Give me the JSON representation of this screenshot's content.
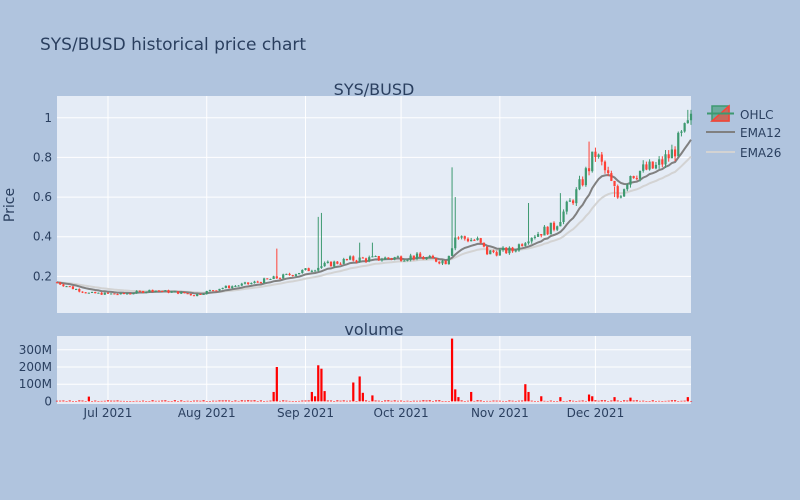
{
  "page": {
    "title": "SYS/BUSD historical price chart"
  },
  "colors": {
    "background": "#b0c4de",
    "plot_bg": "#e5ecf6",
    "grid": "#ffffff",
    "text": "#2a3f5f",
    "increasing": "#3d9970",
    "decreasing": "#ff4136",
    "ema12": "#808080",
    "ema26": "#d3d3d3",
    "volume": "#ff0000"
  },
  "legend": {
    "placement": "top-right",
    "items": [
      {
        "label": "OHLC",
        "icon": "candlestick-legend-icon"
      },
      {
        "label": "EMA12",
        "icon": "line-legend-icon"
      },
      {
        "label": "EMA26",
        "icon": "line-legend-icon"
      }
    ]
  },
  "chart_data": [
    {
      "type": "candlestick",
      "title": "SYS/BUSD",
      "ylabel": "Price",
      "x_range": [
        "2021-06-15",
        "2021-12-31"
      ],
      "ylim": [
        0.015,
        1.11
      ],
      "yticks": [
        0.2,
        0.4,
        0.6,
        0.8,
        1
      ],
      "ytick_labels": [
        "0.2",
        "0.4",
        "0.6",
        "0.8",
        "1"
      ],
      "grid": true,
      "keypoints": [
        [
          "2021-06-15",
          0.17
        ],
        [
          "2021-06-20",
          0.14
        ],
        [
          "2021-06-25",
          0.115
        ],
        [
          "2021-07-05",
          0.11
        ],
        [
          "2021-07-15",
          0.13
        ],
        [
          "2021-07-25",
          0.115
        ],
        [
          "2021-07-28",
          0.105
        ],
        [
          "2021-08-05",
          0.14
        ],
        [
          "2021-08-15",
          0.165
        ],
        [
          "2021-08-25",
          0.2
        ],
        [
          "2021-09-01",
          0.23
        ],
        [
          "2021-09-08",
          0.26
        ],
        [
          "2021-09-15",
          0.285
        ],
        [
          "2021-09-25",
          0.29
        ],
        [
          "2021-10-05",
          0.3
        ],
        [
          "2021-10-15",
          0.275
        ],
        [
          "2021-10-18",
          0.4
        ],
        [
          "2021-10-25",
          0.38
        ],
        [
          "2021-10-28",
          0.32
        ],
        [
          "2021-11-05",
          0.33
        ],
        [
          "2021-11-10",
          0.4
        ],
        [
          "2021-11-18",
          0.45
        ],
        [
          "2021-11-25",
          0.62
        ],
        [
          "2021-12-01",
          0.82
        ],
        [
          "2021-12-05",
          0.7
        ],
        [
          "2021-12-08",
          0.6
        ],
        [
          "2021-12-12",
          0.72
        ],
        [
          "2021-12-20",
          0.75
        ],
        [
          "2021-12-25",
          0.82
        ],
        [
          "2021-12-31",
          0.98
        ]
      ],
      "spikes": [
        {
          "date": "2021-08-23",
          "high": 0.34
        },
        {
          "date": "2021-09-05",
          "high": 0.5
        },
        {
          "date": "2021-09-06",
          "high": 0.52
        },
        {
          "date": "2021-09-18",
          "high": 0.37
        },
        {
          "date": "2021-09-22",
          "high": 0.37
        },
        {
          "date": "2021-10-17",
          "high": 0.75
        },
        {
          "date": "2021-10-18",
          "high": 0.6
        },
        {
          "date": "2021-11-10",
          "high": 0.57
        },
        {
          "date": "2021-11-20",
          "high": 0.62
        },
        {
          "date": "2021-11-29",
          "high": 0.88
        },
        {
          "date": "2021-12-07",
          "high": 0.6
        },
        {
          "date": "2021-12-30",
          "high": 1.04
        },
        {
          "date": "2021-12-31",
          "high": 1.04
        }
      ],
      "series": [
        {
          "name": "OHLC",
          "kind": "candlestick"
        },
        {
          "name": "EMA12",
          "kind": "line",
          "span": 12
        },
        {
          "name": "EMA26",
          "kind": "line",
          "span": 26
        }
      ]
    },
    {
      "type": "bar",
      "title": "volume",
      "x_range": [
        "2021-06-15",
        "2021-12-31"
      ],
      "ylim": [
        -15000000,
        380000000
      ],
      "yticks": [
        0,
        100000000,
        200000000,
        300000000
      ],
      "ytick_labels": [
        "0",
        "100M",
        "200M",
        "300M"
      ],
      "xticks": [
        "2021-07-01",
        "2021-08-01",
        "2021-09-01",
        "2021-10-01",
        "2021-11-01",
        "2021-12-01"
      ],
      "xtick_labels": [
        "Jul 2021",
        "Aug 2021",
        "Sep 2021",
        "Oct 2021",
        "Nov 2021",
        "Dec 2021"
      ],
      "base_volume": 4000000,
      "spikes": [
        {
          "date": "2021-06-25",
          "value": 28000000
        },
        {
          "date": "2021-08-22",
          "value": 55000000
        },
        {
          "date": "2021-08-23",
          "value": 200000000
        },
        {
          "date": "2021-09-03",
          "value": 55000000
        },
        {
          "date": "2021-09-04",
          "value": 30000000
        },
        {
          "date": "2021-09-05",
          "value": 210000000
        },
        {
          "date": "2021-09-06",
          "value": 190000000
        },
        {
          "date": "2021-09-07",
          "value": 60000000
        },
        {
          "date": "2021-09-16",
          "value": 110000000
        },
        {
          "date": "2021-09-18",
          "value": 145000000
        },
        {
          "date": "2021-09-19",
          "value": 50000000
        },
        {
          "date": "2021-09-22",
          "value": 35000000
        },
        {
          "date": "2021-10-17",
          "value": 365000000
        },
        {
          "date": "2021-10-18",
          "value": 70000000
        },
        {
          "date": "2021-10-19",
          "value": 25000000
        },
        {
          "date": "2021-10-23",
          "value": 55000000
        },
        {
          "date": "2021-11-09",
          "value": 100000000
        },
        {
          "date": "2021-11-10",
          "value": 55000000
        },
        {
          "date": "2021-11-14",
          "value": 30000000
        },
        {
          "date": "2021-11-20",
          "value": 25000000
        },
        {
          "date": "2021-11-29",
          "value": 40000000
        },
        {
          "date": "2021-11-30",
          "value": 30000000
        },
        {
          "date": "2021-12-07",
          "value": 25000000
        },
        {
          "date": "2021-12-12",
          "value": 22000000
        },
        {
          "date": "2021-12-30",
          "value": 25000000
        }
      ]
    }
  ]
}
